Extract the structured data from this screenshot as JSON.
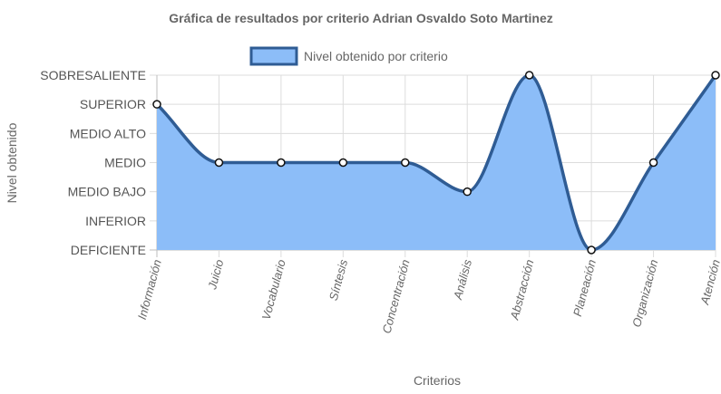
{
  "chart_data": {
    "type": "area",
    "title": "Gráfica de resultados por criterio Adrian Osvaldo Soto Martinez",
    "xlabel": "Criterios",
    "ylabel": "Nivel obtenido",
    "levels": [
      "DEFICIENTE",
      "INFERIOR",
      "MEDIO BAJO",
      "MEDIO",
      "MEDIO ALTO",
      "SUPERIOR",
      "SOBRESALIENTE"
    ],
    "categories": [
      "Información",
      "Juicio",
      "Vocabulario",
      "Síntesis",
      "Concentración",
      "Análisis",
      "Abstracción",
      "Planeación",
      "Organización",
      "Atención"
    ],
    "series": [
      {
        "name": "Nivel obtenido por criterio",
        "values": [
          "SUPERIOR",
          "MEDIO",
          "MEDIO",
          "MEDIO",
          "MEDIO",
          "MEDIO BAJO",
          "SOBRESALIENTE",
          "DEFICIENTE",
          "MEDIO",
          "SOBRESALIENTE"
        ]
      }
    ],
    "grid": true,
    "legend_position": "top-center",
    "colors": {
      "fill": "#8cbdf8",
      "line": "#2f5c94",
      "grid": "#dcdcdc"
    }
  }
}
